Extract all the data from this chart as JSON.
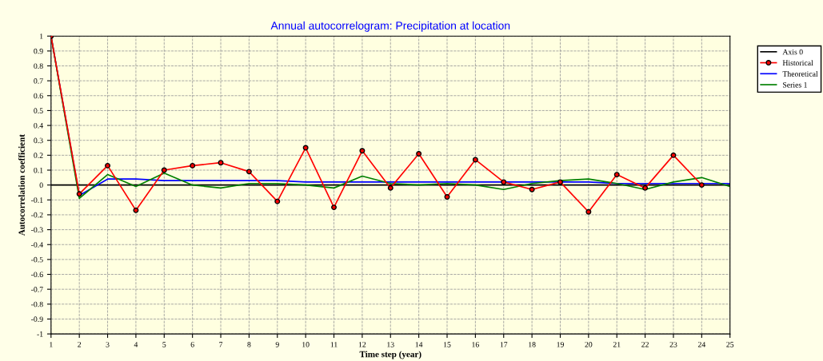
{
  "chart_data": {
    "type": "line",
    "title": "Annual autocorrelogram: Precipitation at location",
    "xlabel": "Time step (year)",
    "ylabel": "Autocorrelation coefficient",
    "x": [
      1,
      2,
      3,
      4,
      5,
      6,
      7,
      8,
      9,
      10,
      11,
      12,
      13,
      14,
      15,
      16,
      17,
      18,
      19,
      20,
      21,
      22,
      23,
      24,
      25
    ],
    "series": [
      {
        "name": "Axis 0",
        "color": "#000000",
        "marker": "none",
        "values": [
          0,
          0,
          0,
          0,
          0,
          0,
          0,
          0,
          0,
          0,
          0,
          0,
          0,
          0,
          0,
          0,
          0,
          0,
          0,
          0,
          0,
          0,
          0,
          0,
          0
        ]
      },
      {
        "name": "Historical",
        "color": "#ff0000",
        "marker": "circle",
        "values": [
          1,
          -0.06,
          0.13,
          -0.17,
          0.1,
          0.13,
          0.15,
          0.09,
          -0.11,
          0.25,
          -0.15,
          0.23,
          -0.02,
          0.21,
          -0.08,
          0.17,
          0.02,
          -0.03,
          0.02,
          -0.18,
          0.07,
          -0.02,
          0.2,
          0.0,
          null
        ]
      },
      {
        "name": "Theoretical",
        "color": "#0000ff",
        "marker": "none",
        "values": [
          1,
          -0.07,
          0.04,
          0.04,
          0.03,
          0.03,
          0.03,
          0.03,
          0.03,
          0.02,
          0.02,
          0.02,
          0.02,
          0.02,
          0.02,
          0.02,
          0.02,
          0.02,
          0.02,
          0.02,
          0.01,
          0.01,
          0.01,
          0.01,
          0.01
        ]
      },
      {
        "name": "Series 1",
        "color": "#008000",
        "marker": "none",
        "values": [
          1,
          -0.09,
          0.07,
          -0.01,
          0.08,
          0.0,
          -0.02,
          0.01,
          0.01,
          0.0,
          -0.02,
          0.06,
          0.01,
          0.0,
          0.01,
          0.0,
          -0.03,
          0.01,
          0.03,
          0.04,
          0.01,
          -0.03,
          0.02,
          0.05,
          -0.01
        ]
      }
    ],
    "xlim": [
      1,
      25
    ],
    "xticks": [
      1,
      2,
      3,
      4,
      5,
      6,
      7,
      8,
      9,
      10,
      11,
      12,
      13,
      14,
      15,
      16,
      17,
      18,
      19,
      20,
      21,
      22,
      23,
      24,
      25
    ],
    "ylim": [
      -1,
      1
    ],
    "yticks": [
      -1,
      -0.9,
      -0.8,
      -0.7,
      -0.6,
      -0.5,
      -0.4,
      -0.3,
      -0.2,
      -0.1,
      0,
      0.1,
      0.2,
      0.3,
      0.4,
      0.5,
      0.6,
      0.7,
      0.8,
      0.9,
      1
    ],
    "grid": true,
    "legend": "top right",
    "line_style": "solid"
  }
}
